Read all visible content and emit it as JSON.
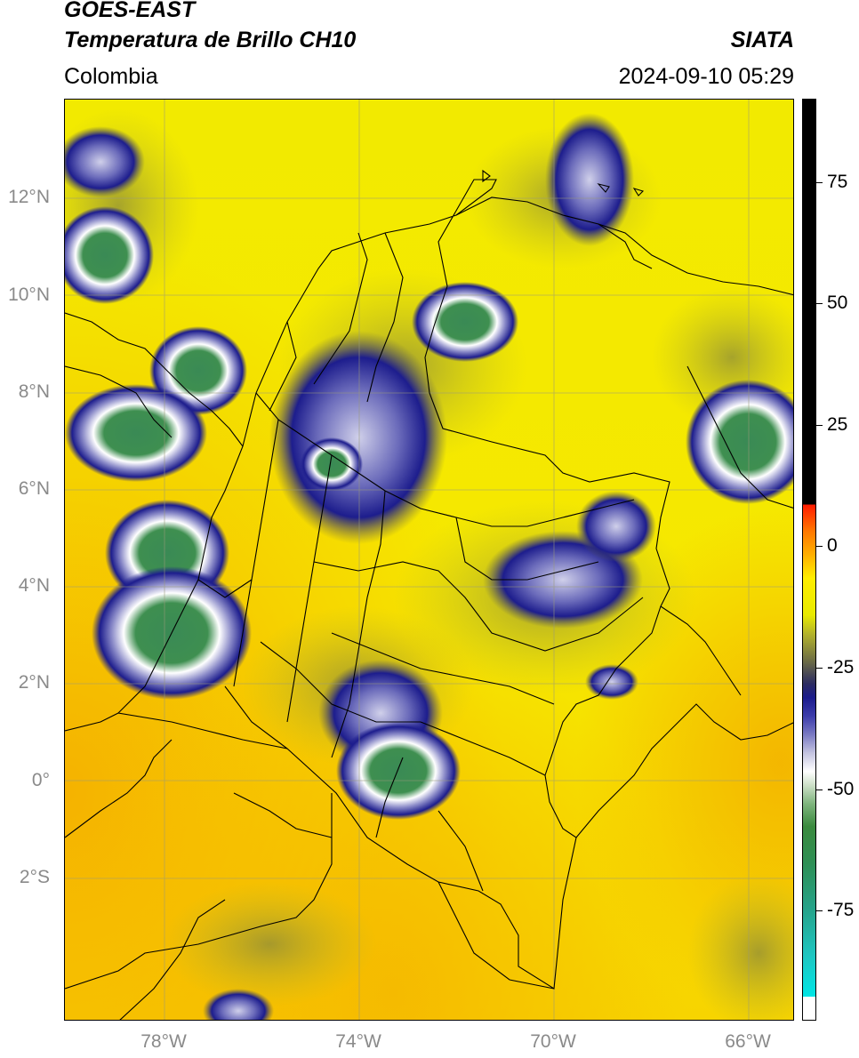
{
  "header": {
    "satellite": "GOES-EAST",
    "product": "Temperatura de Brillo CH10",
    "region": "Colombia",
    "organization": "SIATA",
    "datetime": "2024-09-10 05:29"
  },
  "map": {
    "lat_labels": [
      "12°N",
      "10°N",
      "8°N",
      "6°N",
      "4°N",
      "2°N",
      "0°",
      "2°S"
    ],
    "lon_labels": [
      "78°W",
      "74°W",
      "70°W",
      "66°W"
    ],
    "lat_range": [
      -5,
      14
    ],
    "lon_range": [
      -80,
      -65
    ]
  },
  "colorbar": {
    "tick_labels": [
      "75",
      "50",
      "25",
      "0",
      "-25",
      "-50",
      "-75"
    ],
    "colors": {
      "warm": "#ffee00",
      "mid": "#1b1b8c",
      "cold": "#2e8f55",
      "coldest": "#00e5e5",
      "above": "#000000"
    }
  }
}
